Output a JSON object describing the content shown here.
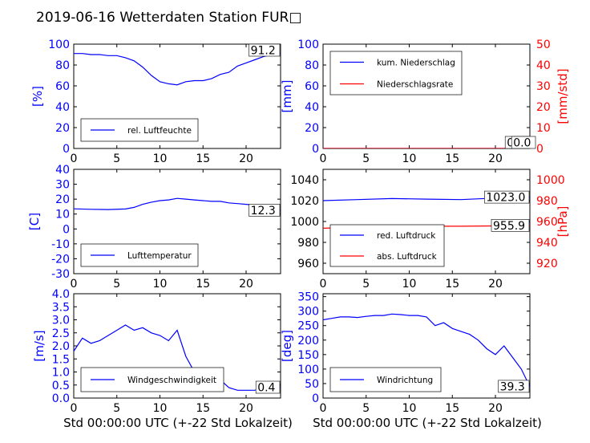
{
  "figure": {
    "title": "2019-06-16 Wetterdaten Station FUR□",
    "xlabel": "Std 00:00:00 UTC (+-22 Std Lokalzeit)"
  },
  "chart_data": [
    {
      "id": "humidity",
      "type": "line",
      "ylabel": "[%]",
      "xlim": [
        0,
        24
      ],
      "ylim": [
        0,
        100
      ],
      "yticks": [
        0,
        20,
        40,
        60,
        80,
        100
      ],
      "xticks": [
        0,
        5,
        10,
        15,
        20
      ],
      "legend_position": "lower-left",
      "series": [
        {
          "name": "rel. Luftfeuchte",
          "color": "#0000ff",
          "x": [
            0,
            1,
            2,
            3,
            4,
            5,
            6,
            7,
            8,
            9,
            10,
            11,
            12,
            13,
            14,
            15,
            16,
            17,
            18,
            19,
            20,
            21,
            22,
            23,
            24
          ],
          "y": [
            91,
            91,
            90,
            90,
            89,
            89,
            87,
            84,
            78,
            70,
            64,
            62,
            61,
            64,
            65,
            65,
            67,
            71,
            73,
            79,
            82,
            85,
            88,
            90,
            91
          ]
        }
      ],
      "annotations": [
        {
          "text": "91.2",
          "series": 0
        }
      ]
    },
    {
      "id": "precipitation",
      "type": "line",
      "ylabel": "[mm]",
      "ylabel_right": "[mm/std]",
      "xlim": [
        0,
        24
      ],
      "ylim": [
        0,
        100
      ],
      "ylim_right": [
        0,
        50
      ],
      "yticks": [
        0,
        20,
        40,
        60,
        80,
        100
      ],
      "yticks_right": [
        0,
        10,
        20,
        30,
        40,
        50
      ],
      "xticks": [
        0,
        5,
        10,
        15,
        20
      ],
      "legend_position": "top-left",
      "series": [
        {
          "name": "kum. Niederschlag",
          "color": "#0000ff",
          "axis": "left",
          "x": [
            0,
            24
          ],
          "y": [
            0,
            0
          ]
        },
        {
          "name": "Niederschlagsrate",
          "color": "#ff0000",
          "axis": "right",
          "x": [
            0,
            24
          ],
          "y": [
            0,
            0
          ]
        }
      ],
      "annotations": [
        {
          "text": "0.0",
          "series": 0
        },
        {
          "text": "0.0",
          "series": 1
        }
      ]
    },
    {
      "id": "temperature",
      "type": "line",
      "ylabel": "[C]",
      "xlim": [
        0,
        24
      ],
      "ylim": [
        -30,
        40
      ],
      "yticks": [
        -30,
        -20,
        -10,
        0,
        10,
        20,
        30,
        40
      ],
      "xticks": [
        0,
        5,
        10,
        15,
        20
      ],
      "legend_position": "lower-left",
      "series": [
        {
          "name": "Lufttemperatur",
          "color": "#0000ff",
          "x": [
            0,
            2,
            4,
            6,
            7,
            8,
            9,
            10,
            11,
            12,
            13,
            14,
            15,
            16,
            17,
            18,
            19,
            20,
            21,
            22,
            23,
            24
          ],
          "y": [
            13.5,
            13.2,
            13.0,
            13.4,
            14.5,
            16.5,
            18.0,
            19.0,
            19.5,
            20.5,
            20.0,
            19.5,
            19.0,
            18.5,
            18.5,
            17.5,
            17.0,
            16.5,
            16.0,
            15.0,
            13.5,
            12.3
          ]
        }
      ],
      "annotations": [
        {
          "text": "12.3",
          "series": 0
        }
      ]
    },
    {
      "id": "pressure",
      "type": "line",
      "ylabel_right": "[hPa]",
      "xlim": [
        0,
        24
      ],
      "ylim": [
        950,
        1050
      ],
      "ylim_right": [
        910,
        1010
      ],
      "yticks": [
        960,
        980,
        1000,
        1020,
        1040
      ],
      "yticks_right": [
        920,
        940,
        960,
        980,
        1000
      ],
      "xticks": [
        0,
        5,
        10,
        15,
        20
      ],
      "legend_position": "lower-left",
      "series": [
        {
          "name": "red. Luftdruck",
          "color": "#0000ff",
          "axis": "left",
          "x": [
            0,
            4,
            8,
            12,
            16,
            20,
            24
          ],
          "y": [
            1020.0,
            1021.0,
            1022.0,
            1021.5,
            1021.0,
            1022.5,
            1023.0
          ]
        },
        {
          "name": "abs. Luftdruck",
          "color": "#ff0000",
          "axis": "right",
          "x": [
            0,
            4,
            8,
            12,
            16,
            20,
            24
          ],
          "y": [
            953.5,
            954.5,
            955.5,
            955.5,
            955.5,
            955.8,
            955.9
          ]
        }
      ],
      "annotations": [
        {
          "text": "1023.0",
          "series": 0
        },
        {
          "text": "955.9",
          "series": 1
        }
      ]
    },
    {
      "id": "windspeed",
      "type": "line",
      "ylabel": "[m/s]",
      "xlim": [
        0,
        24
      ],
      "ylim": [
        0,
        4
      ],
      "yticks": [
        0.0,
        0.5,
        1.0,
        1.5,
        2.0,
        2.5,
        3.0,
        3.5,
        4.0
      ],
      "xticks": [
        0,
        5,
        10,
        15,
        20
      ],
      "legend_position": "lower-left",
      "series": [
        {
          "name": "Windgeschwindigkeit",
          "color": "#0000ff",
          "x": [
            0,
            1,
            2,
            3,
            4,
            5,
            6,
            7,
            8,
            9,
            10,
            11,
            12,
            13,
            14,
            15,
            16,
            17,
            18,
            19,
            20,
            21,
            22,
            23,
            24
          ],
          "y": [
            1.8,
            2.3,
            2.1,
            2.2,
            2.4,
            2.6,
            2.8,
            2.6,
            2.7,
            2.5,
            2.4,
            2.2,
            2.6,
            1.6,
            1.0,
            0.9,
            1.0,
            0.7,
            0.4,
            0.3,
            0.3,
            0.3,
            0.4,
            0.4,
            0.4
          ]
        }
      ],
      "annotations": [
        {
          "text": "0.4",
          "series": 0
        }
      ]
    },
    {
      "id": "winddirection",
      "type": "line",
      "ylabel": "[deg]",
      "xlim": [
        0,
        24
      ],
      "ylim": [
        0,
        360
      ],
      "yticks": [
        0,
        50,
        100,
        150,
        200,
        250,
        300,
        350
      ],
      "xticks": [
        0,
        5,
        10,
        15,
        20
      ],
      "legend_position": "lower-left",
      "series": [
        {
          "name": "Windrichtung",
          "color": "#0000ff",
          "x": [
            0,
            1,
            2,
            3,
            4,
            5,
            6,
            7,
            8,
            9,
            10,
            11,
            12,
            13,
            14,
            15,
            16,
            17,
            18,
            19,
            20,
            21,
            22,
            23,
            24
          ],
          "y": [
            270,
            275,
            280,
            280,
            278,
            282,
            285,
            285,
            290,
            288,
            285,
            285,
            280,
            250,
            260,
            240,
            230,
            220,
            200,
            170,
            150,
            180,
            140,
            100,
            39
          ]
        }
      ],
      "annotations": [
        {
          "text": "39.3",
          "series": 0
        }
      ]
    }
  ]
}
